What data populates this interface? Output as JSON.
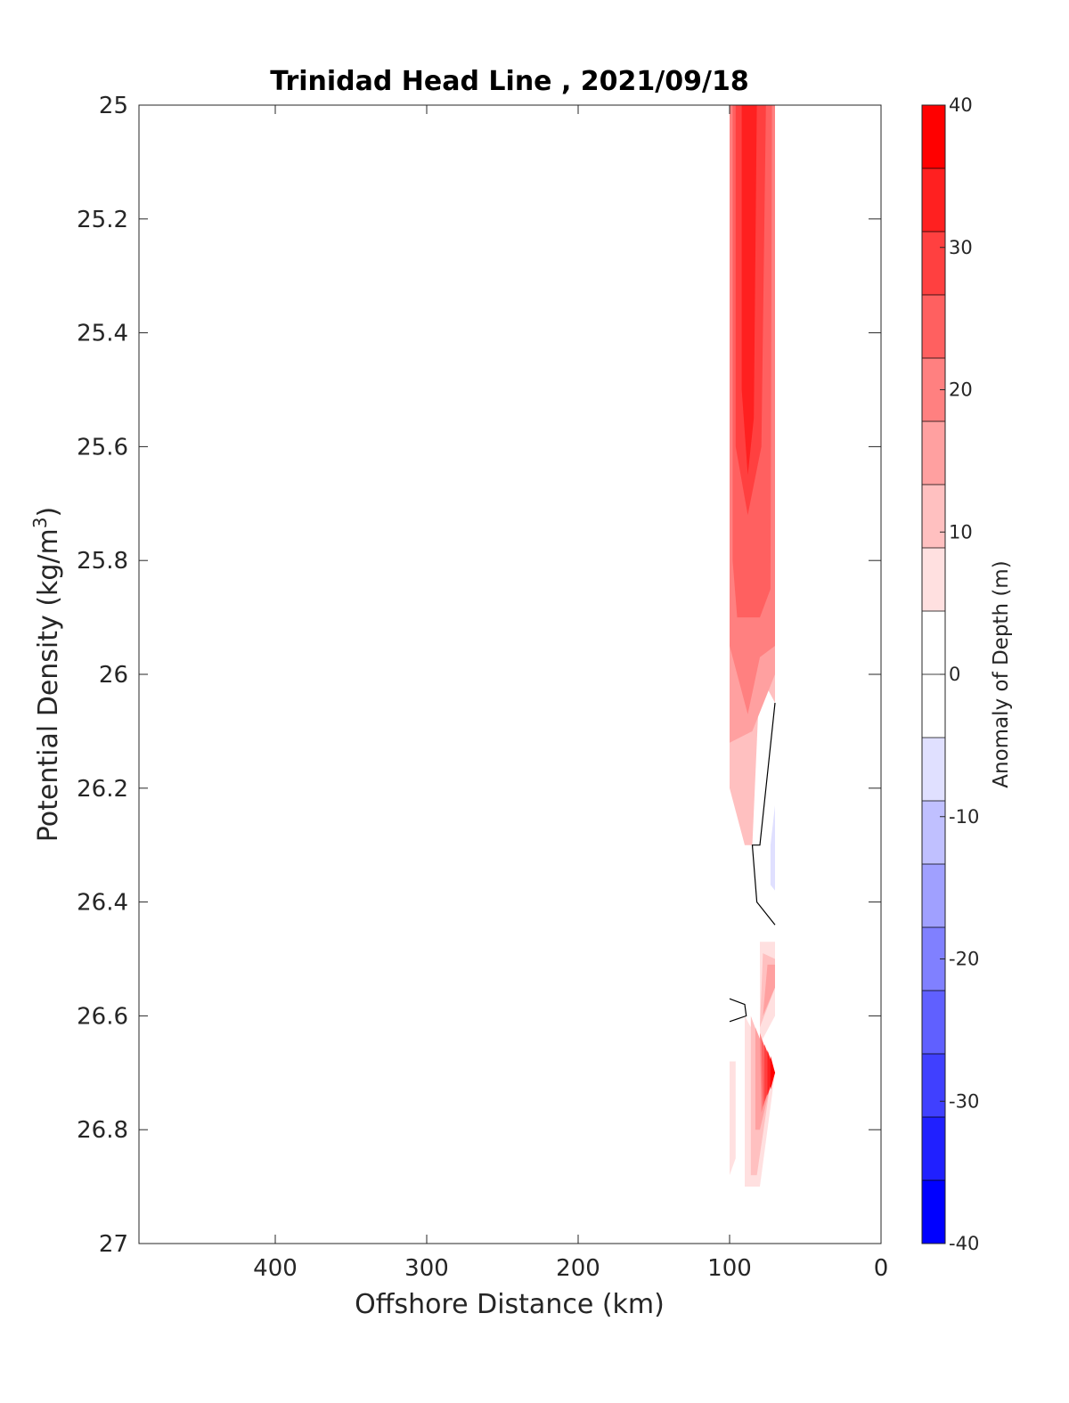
{
  "chart_data": {
    "type": "contour",
    "title": "Trinidad Head Line , 2021/09/18",
    "xlabel": "Offshore Distance (km)",
    "ylabel": "Potential Density (kg/m",
    "ylabel_sup": "3",
    "ylabel_end": ")",
    "xlim": [
      490,
      0
    ],
    "ylim": [
      25,
      27
    ],
    "x_reversed": true,
    "y_reversed": true,
    "xticks": [
      400,
      300,
      200,
      100,
      0
    ],
    "yticks": [
      25,
      25.2,
      25.4,
      25.6,
      25.8,
      26,
      26.2,
      26.4,
      26.6,
      26.8,
      27
    ],
    "colorbar": {
      "label": "Anomaly of Depth (m)",
      "range": [
        -40,
        40
      ],
      "level_step": 5,
      "tick_values": [
        40,
        30,
        20,
        10,
        0,
        -10,
        -20,
        -30,
        -40
      ],
      "colors": [
        "#ff0000",
        "#ff2020",
        "#ff4040",
        "#ff6060",
        "#ff8080",
        "#ffa0a0",
        "#ffc0c0",
        "#ffe0e0",
        "#ffffff",
        "#ffffff",
        "#e0e0ff",
        "#c0c0ff",
        "#a0a0ff",
        "#8080ff",
        "#6060ff",
        "#4040ff",
        "#2020ff",
        "#0000ff"
      ]
    },
    "anomaly_regions": [
      {
        "level": 10,
        "points": [
          [
            100,
            25
          ],
          [
            70,
            25
          ],
          [
            70,
            26.05
          ],
          [
            80,
            26.0
          ],
          [
            85,
            26.3
          ],
          [
            90,
            26.3
          ],
          [
            100,
            26.2
          ]
        ]
      },
      {
        "level": 15,
        "points": [
          [
            100,
            25
          ],
          [
            70,
            25
          ],
          [
            70,
            26.0
          ],
          [
            85,
            26.1
          ],
          [
            100,
            26.12
          ]
        ]
      },
      {
        "level": 20,
        "points": [
          [
            100,
            25
          ],
          [
            70,
            25
          ],
          [
            70,
            25.95
          ],
          [
            80,
            25.97
          ],
          [
            88,
            26.07
          ],
          [
            100,
            25.95
          ]
        ]
      },
      {
        "level": 25,
        "points": [
          [
            98,
            25
          ],
          [
            72,
            25
          ],
          [
            73,
            25.85
          ],
          [
            80,
            25.9
          ],
          [
            95,
            25.9
          ],
          [
            98,
            25.8
          ]
        ]
      },
      {
        "level": 30,
        "points": [
          [
            96,
            25
          ],
          [
            76,
            25
          ],
          [
            79,
            25.6
          ],
          [
            88,
            25.72
          ],
          [
            96,
            25.6
          ]
        ]
      },
      {
        "level": 35,
        "points": [
          [
            92,
            25
          ],
          [
            82,
            25
          ],
          [
            84,
            25.55
          ],
          [
            88,
            25.65
          ],
          [
            92,
            25.5
          ]
        ]
      },
      {
        "level": -5,
        "points": [
          [
            70,
            26.15
          ],
          [
            74,
            26.2
          ],
          [
            76,
            26.35
          ],
          [
            74,
            26.42
          ],
          [
            70,
            26.4
          ]
        ]
      },
      {
        "level": -10,
        "points": [
          [
            70,
            26.23
          ],
          [
            73,
            26.3
          ],
          [
            73,
            26.37
          ],
          [
            70,
            26.38
          ]
        ]
      },
      {
        "level": 5,
        "points": [
          [
            80,
            26.47
          ],
          [
            70,
            26.47
          ],
          [
            70,
            26.6
          ],
          [
            80,
            26.65
          ]
        ]
      },
      {
        "level": 10,
        "points": [
          [
            78,
            26.49
          ],
          [
            70,
            26.5
          ],
          [
            70,
            26.55
          ],
          [
            80,
            26.62
          ]
        ]
      },
      {
        "level": 15,
        "points": [
          [
            75,
            26.51
          ],
          [
            70,
            26.51
          ],
          [
            70,
            26.55
          ],
          [
            78,
            26.6
          ]
        ]
      },
      {
        "level": 5,
        "points": [
          [
            90,
            26.6
          ],
          [
            70,
            26.7
          ],
          [
            80,
            26.9
          ],
          [
            90,
            26.9
          ]
        ]
      },
      {
        "level": 5,
        "points": [
          [
            100,
            26.68
          ],
          [
            96,
            26.68
          ],
          [
            96,
            26.85
          ],
          [
            100,
            26.88
          ]
        ]
      },
      {
        "level": 10,
        "points": [
          [
            86,
            26.6
          ],
          [
            72,
            26.7
          ],
          [
            82,
            26.88
          ],
          [
            86,
            26.88
          ]
        ]
      },
      {
        "level": 15,
        "points": [
          [
            83,
            26.62
          ],
          [
            71,
            26.7
          ],
          [
            80,
            26.8
          ],
          [
            83,
            26.8
          ]
        ]
      },
      {
        "level": 20,
        "points": [
          [
            80,
            26.63
          ],
          [
            71,
            26.7
          ],
          [
            79,
            26.77
          ]
        ]
      },
      {
        "level": 25,
        "points": [
          [
            79,
            26.64
          ],
          [
            70,
            26.7
          ],
          [
            78,
            26.76
          ]
        ]
      },
      {
        "level": 30,
        "points": [
          [
            77,
            26.65
          ],
          [
            70,
            26.7
          ],
          [
            77,
            26.75
          ]
        ]
      },
      {
        "level": 35,
        "points": [
          [
            75,
            26.66
          ],
          [
            70,
            26.7
          ],
          [
            75,
            26.74
          ]
        ]
      },
      {
        "level": 40,
        "points": [
          [
            73,
            26.67
          ],
          [
            70,
            26.7
          ],
          [
            73,
            26.73
          ]
        ]
      }
    ],
    "zero_contours": [
      [
        [
          70,
          26.05
        ],
        [
          80,
          26.3
        ],
        [
          85,
          26.3
        ],
        [
          82,
          26.4
        ],
        [
          70,
          26.44
        ]
      ],
      [
        [
          100,
          26.57
        ],
        [
          90,
          26.58
        ],
        [
          89,
          26.6
        ],
        [
          100,
          26.61
        ]
      ]
    ]
  }
}
